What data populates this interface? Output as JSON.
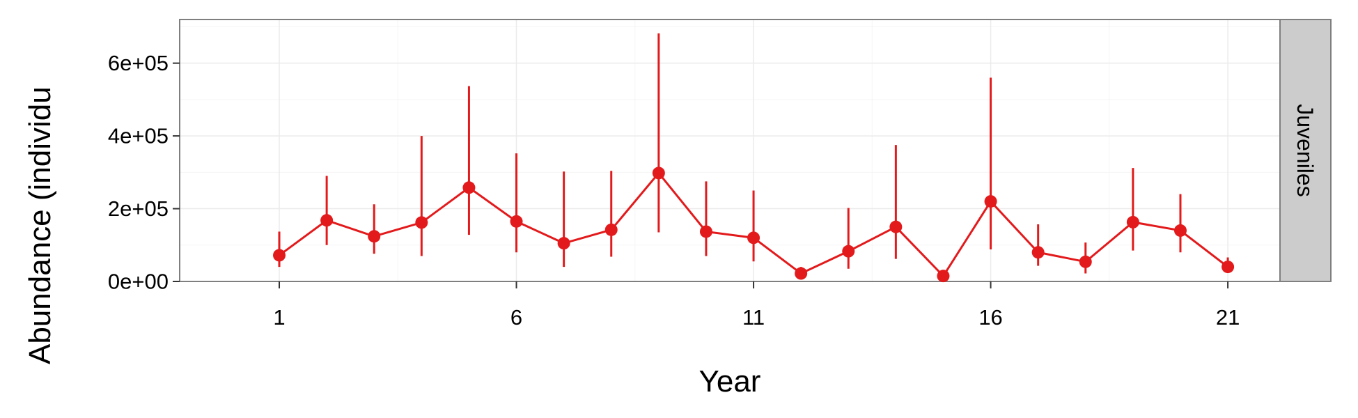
{
  "chart_data": {
    "type": "line",
    "xlabel": "Year",
    "ylabel": "Abundance (individu",
    "facet_label": "Juveniles",
    "x": [
      1,
      2,
      3,
      4,
      5,
      6,
      7,
      8,
      9,
      10,
      11,
      12,
      13,
      14,
      15,
      16,
      17,
      18,
      19,
      20,
      21
    ],
    "x_ticks": [
      1,
      6,
      11,
      16,
      21
    ],
    "x_tick_labels": [
      "1",
      "6",
      "11",
      "16",
      "21"
    ],
    "xlim": [
      -1.1,
      22.1
    ],
    "y_ticks": [
      0,
      200000,
      400000,
      600000
    ],
    "y_tick_labels": [
      "0e+00",
      "2e+05",
      "4e+05",
      "6e+05"
    ],
    "ylim": [
      0,
      720000
    ],
    "grid": true,
    "series": [
      {
        "color": "#e31a1c",
        "values": [
          72000,
          168000,
          124000,
          162000,
          258000,
          165000,
          105000,
          142000,
          298000,
          137000,
          120000,
          22000,
          83000,
          150000,
          15000,
          220000,
          80000,
          54000,
          163000,
          140000,
          40000
        ],
        "lower": [
          40000,
          100000,
          76000,
          70000,
          128000,
          80000,
          40000,
          68000,
          135000,
          70000,
          55000,
          8000,
          35000,
          62000,
          3000,
          88000,
          43000,
          22000,
          85000,
          80000,
          25000
        ],
        "upper": [
          137000,
          290000,
          212000,
          400000,
          537000,
          352000,
          302000,
          304000,
          682000,
          275000,
          250000,
          40000,
          202000,
          375000,
          26000,
          560000,
          157000,
          107000,
          312000,
          240000,
          66000
        ]
      }
    ],
    "colors": {
      "panel_border": "#7f7f7f",
      "grid_major": "#ebebeb",
      "grid_minor": "#f5f5f5",
      "strip_fill": "#cccccc"
    }
  }
}
